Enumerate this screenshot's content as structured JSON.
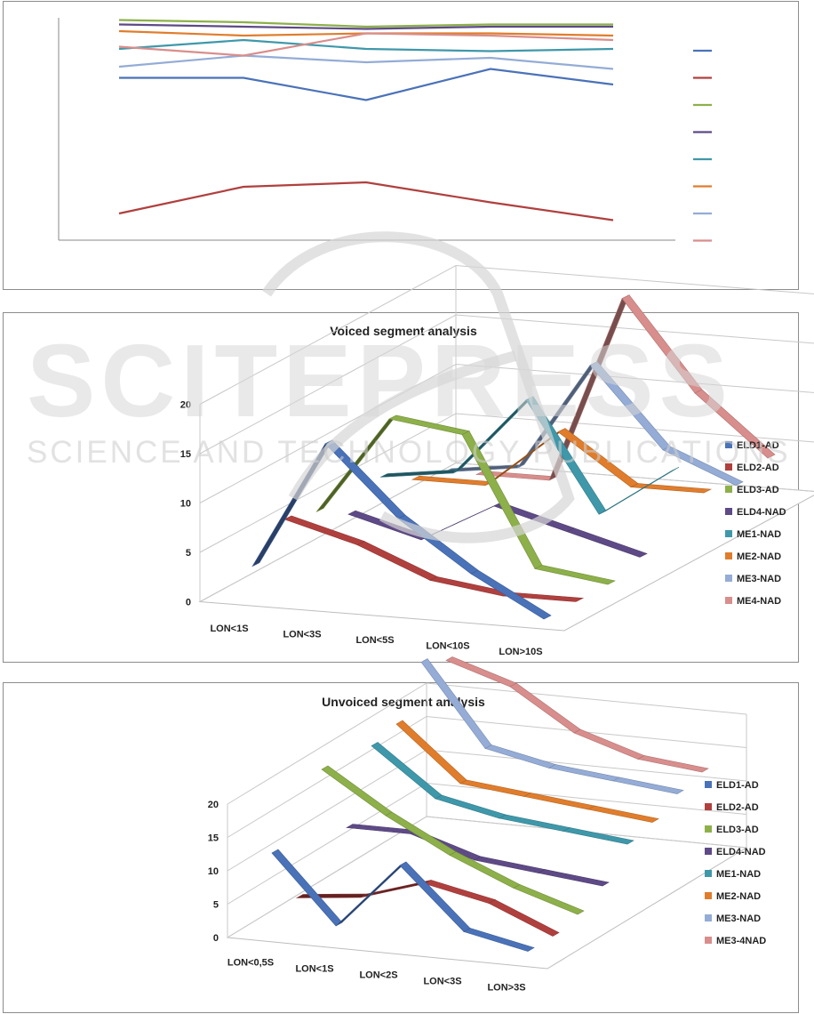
{
  "chart_data": [
    {
      "type": "line",
      "title": "",
      "categories": [
        "",
        "",
        "",
        "",
        ""
      ],
      "legend_position": "right",
      "grid": false,
      "y_scale": "unlabeled",
      "series": [
        {
          "color": "#4a72b8",
          "values": [
            0.73,
            0.73,
            0.63,
            0.77,
            0.7
          ]
        },
        {
          "color": "#b0403e",
          "values": [
            0.12,
            0.24,
            0.26,
            0.17,
            0.09
          ]
        },
        {
          "color": "#8db04a",
          "values": [
            0.99,
            0.98,
            0.96,
            0.97,
            0.97
          ]
        },
        {
          "color": "#5e4a86",
          "values": [
            0.97,
            0.96,
            0.95,
            0.96,
            0.96
          ]
        },
        {
          "color": "#3f98aa",
          "values": [
            0.86,
            0.9,
            0.86,
            0.85,
            0.86
          ]
        },
        {
          "color": "#e07d2c",
          "values": [
            0.94,
            0.92,
            0.93,
            0.93,
            0.92
          ]
        },
        {
          "color": "#94acd6",
          "values": [
            0.78,
            0.83,
            0.8,
            0.82,
            0.77
          ]
        },
        {
          "color": "#d88e8c",
          "values": [
            0.87,
            0.83,
            0.93,
            0.92,
            0.9
          ]
        }
      ]
    },
    {
      "type": "line",
      "subtype": "3d-ribbon",
      "title": "Voiced segment analysis",
      "categories": [
        "LON<1S",
        "LON<3S",
        "LON<5S",
        "LON<10S",
        "LON>10S"
      ],
      "yticks": [
        "0",
        "5",
        "10",
        "15",
        "20"
      ],
      "ylim": [
        0,
        20
      ],
      "legend_position": "right",
      "series": [
        {
          "name": "ELD1-AD",
          "color": "#4a72b8",
          "values": [
            3,
            16,
            9,
            4,
            0
          ]
        },
        {
          "name": "ELD2-AD",
          "color": "#b0403e",
          "values": [
            6,
            4,
            1,
            0,
            0
          ]
        },
        {
          "name": "ELD3-AD",
          "color": "#8db04a",
          "values": [
            5,
            15,
            14,
            1,
            0
          ]
        },
        {
          "name": "ELD4-NAD",
          "color": "#5e4a86",
          "values": [
            3,
            1,
            5,
            3,
            1
          ]
        },
        {
          "name": "ME1-NAD",
          "color": "#3f98aa",
          "values": [
            5,
            6,
            14,
            3,
            8
          ]
        },
        {
          "name": "ME2-NAD",
          "color": "#e07d2c",
          "values": [
            3,
            3,
            9,
            4,
            4
          ]
        },
        {
          "name": "ME3-NAD",
          "color": "#94acd6",
          "values": [
            2,
            3,
            14,
            6,
            3
          ]
        },
        {
          "name": "ME4-NAD",
          "color": "#d88e8c",
          "values": [
            0,
            0,
            19,
            10,
            4
          ]
        }
      ]
    },
    {
      "type": "line",
      "subtype": "3d-ribbon",
      "title": "Unvoiced segment analysis",
      "categories": [
        "LON<0,5S",
        "LON<1S",
        "LON<2S",
        "LON<3S",
        "LON>3S"
      ],
      "yticks": [
        "0",
        "5",
        "10",
        "15",
        "20"
      ],
      "ylim": [
        0,
        20
      ],
      "legend_position": "right",
      "series": [
        {
          "name": "ELD1-AD",
          "color": "#4a72b8",
          "values": [
            12,
            2,
            12,
            3,
            1
          ]
        },
        {
          "name": "ELD2-AD",
          "color": "#b0403e",
          "values": [
            3,
            4,
            7,
            5,
            1
          ]
        },
        {
          "name": "ELD3-AD",
          "color": "#8db04a",
          "values": [
            20,
            14,
            9,
            5,
            2
          ]
        },
        {
          "name": "ELD4-NAD",
          "color": "#5e4a86",
          "values": [
            9,
            9,
            6,
            5,
            4
          ]
        },
        {
          "name": "ME1-NAD",
          "color": "#3f98aa",
          "values": [
            19,
            12,
            10,
            9,
            8
          ]
        },
        {
          "name": "ME2-NAD",
          "color": "#e07d2c",
          "values": [
            20,
            12,
            11,
            10,
            9
          ]
        },
        {
          "name": "ME3-NAD",
          "color": "#94acd6",
          "values": [
            27,
            15,
            13,
            12,
            11
          ]
        },
        {
          "name": "ME3-4NAD",
          "color": "#d88e8c",
          "values": [
            25,
            22,
            16,
            13,
            12
          ]
        }
      ]
    }
  ],
  "watermark": {
    "logo_text": "SCITEPRESS",
    "tagline": "SCIENCE AND TECHNOLOGY PUBLICATIONS"
  }
}
